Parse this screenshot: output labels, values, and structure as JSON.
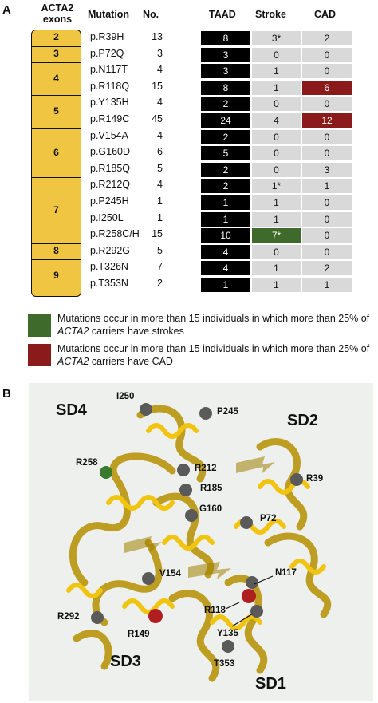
{
  "panel_a": {
    "label": "A",
    "headers": {
      "exons": "ACTA2\nexons",
      "mutation": "Mutation",
      "no": "No.",
      "taad": "TAAD",
      "stroke": "Stroke",
      "cad": "CAD"
    },
    "exons": [
      "2",
      "3",
      "4",
      "5",
      "6",
      "7",
      "8",
      "9"
    ],
    "rows": [
      {
        "mutation": "p.R39H",
        "no": "13",
        "taad": "8",
        "stroke": "3*",
        "cad": "2"
      },
      {
        "mutation": "p.P72Q",
        "no": "3",
        "taad": "3",
        "stroke": "0",
        "cad": "0"
      },
      {
        "mutation": "p.N117T",
        "no": "4",
        "taad": "3",
        "stroke": "1",
        "cad": "0"
      },
      {
        "mutation": "p.R118Q",
        "no": "15",
        "taad": "8",
        "stroke": "1",
        "cad": "6"
      },
      {
        "mutation": "p.Y135H",
        "no": "4",
        "taad": "2",
        "stroke": "0",
        "cad": "0"
      },
      {
        "mutation": "p.R149C",
        "no": "45",
        "taad": "24",
        "stroke": "4",
        "cad": "12"
      },
      {
        "mutation": "p.V154A",
        "no": "4",
        "taad": "2",
        "stroke": "0",
        "cad": "0"
      },
      {
        "mutation": "p.G160D",
        "no": "6",
        "taad": "5",
        "stroke": "0",
        "cad": "0"
      },
      {
        "mutation": "p.R185Q",
        "no": "5",
        "taad": "2",
        "stroke": "0",
        "cad": "3"
      },
      {
        "mutation": "p.R212Q",
        "no": "4",
        "taad": "2",
        "stroke": "1*",
        "cad": "1"
      },
      {
        "mutation": "p.P245H",
        "no": "1",
        "taad": "1",
        "stroke": "1",
        "cad": "0"
      },
      {
        "mutation": "p.I250L",
        "no": "1",
        "taad": "1",
        "stroke": "1",
        "cad": "0"
      },
      {
        "mutation": "p.R258C/H",
        "no": "15",
        "taad": "10",
        "stroke": "7*",
        "cad": "0"
      },
      {
        "mutation": "p.R292G",
        "no": "5",
        "taad": "4",
        "stroke": "0",
        "cad": "0"
      },
      {
        "mutation": "p.T326N",
        "no": "7",
        "taad": "4",
        "stroke": "1",
        "cad": "2"
      },
      {
        "mutation": "p.T353N",
        "no": "2",
        "taad": "1",
        "stroke": "1",
        "cad": "1"
      }
    ],
    "legend": [
      {
        "color": "#3e6b2c",
        "text_before": "Mutations occur in more than 15 individuals in which more than 25% of ",
        "italic": "ACTA2",
        "text_after": " carriers have strokes"
      },
      {
        "color": "#8b1a1a",
        "text_before": "Mutations occur in more than 15 individuals in which more than 25% of ",
        "italic": "ACTA2",
        "text_after": " carriers have CAD"
      }
    ]
  },
  "panel_b": {
    "label": "B",
    "subdomains": [
      "SD4",
      "SD2",
      "SD3",
      "SD1"
    ],
    "residues": [
      "I250",
      "P245",
      "R258",
      "R212",
      "R39",
      "R185",
      "G160",
      "P72",
      "N117",
      "V154",
      "R292",
      "R118",
      "R149",
      "Y135",
      "T353"
    ]
  }
}
